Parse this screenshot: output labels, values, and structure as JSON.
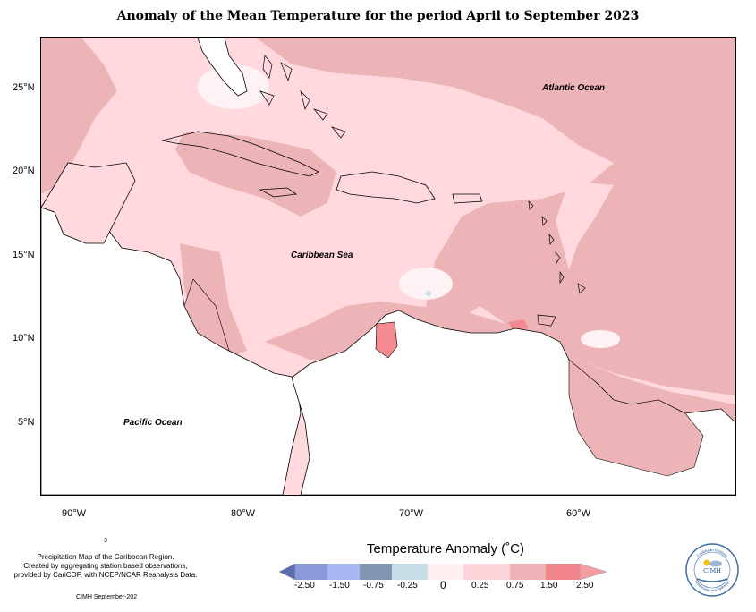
{
  "title": "Anomaly of the Mean Temperature for the period April to September 2023",
  "lat_labels": [
    "25°N",
    "20°N",
    "15°N",
    "10°N",
    "5°N"
  ],
  "lon_labels": [
    "90°W",
    "80°W",
    "70°W",
    "60°W"
  ],
  "ocean_labels": {
    "atlantic": "Atlantic Ocean",
    "caribbean": "Caribbean Sea",
    "pacific": "Pacific Ocean"
  },
  "credits": {
    "number": "3",
    "line1": "Precipitation Map of the Caribbean Region.",
    "line2": "Created by aggregating station based observations,",
    "line3": "provided by CariCOF, with NCEP/NCAR Reanalysis Data.",
    "date": "CIMH September-202"
  },
  "legend": {
    "title": "Temperature Anomaly (˚C)",
    "ticks": [
      "-2.50",
      "-1.50",
      "-0.75",
      "-0.25",
      "0",
      "0.25",
      "0.75",
      "1.50",
      "2.50"
    ],
    "colors": [
      "#5b6db0",
      "#8a9ad9",
      "#a6b6f2",
      "#8096b0",
      "#c5dde4",
      "#fff0f0",
      "#fcd6da",
      "#eeb3b6",
      "#f2858b",
      "#f59ca0"
    ]
  },
  "logo": {
    "top_text": "Caribbean Institute",
    "name": "CIMH",
    "bottom_text": "Meteorology and Hydrology"
  },
  "palette": {
    "anomaly_low": "#fff2f4",
    "anomaly_025": "#ffd9dd",
    "anomaly_075": "#edb4b7",
    "anomaly_150": "#f28a90",
    "land_blank": "#ffffff",
    "coast": "#000000"
  }
}
